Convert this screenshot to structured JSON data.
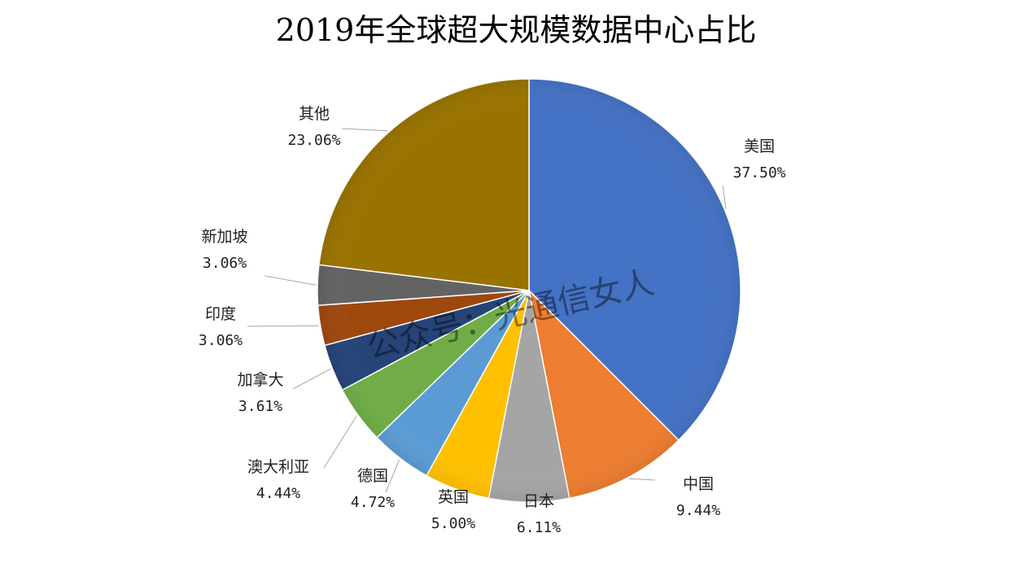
{
  "chart_data": {
    "type": "pie",
    "title": "2019年全球超大规模数据中心占比",
    "categories": [
      "美国",
      "中国",
      "日本",
      "英国",
      "德国",
      "澳大利亚",
      "加拿大",
      "印度",
      "新加坡",
      "其他"
    ],
    "values": [
      37.5,
      9.44,
      6.11,
      5.0,
      4.72,
      4.44,
      3.61,
      3.06,
      3.06,
      23.06
    ],
    "value_labels": [
      "37.50%",
      "9.44%",
      "6.11%",
      "5.00%",
      "4.72%",
      "4.44%",
      "3.61%",
      "3.06%",
      "3.06%",
      "23.06%"
    ],
    "colors": [
      "#4472c4",
      "#ed7d31",
      "#a5a5a5",
      "#ffc000",
      "#5b9bd5",
      "#70ad47",
      "#264478",
      "#9e480e",
      "#636363",
      "#997300"
    ],
    "start_angle": "12 o'clock",
    "direction": "clockwise",
    "legend": "none",
    "data_labels": "outside with leader lines"
  },
  "watermark": "公众号：光通信女人"
}
